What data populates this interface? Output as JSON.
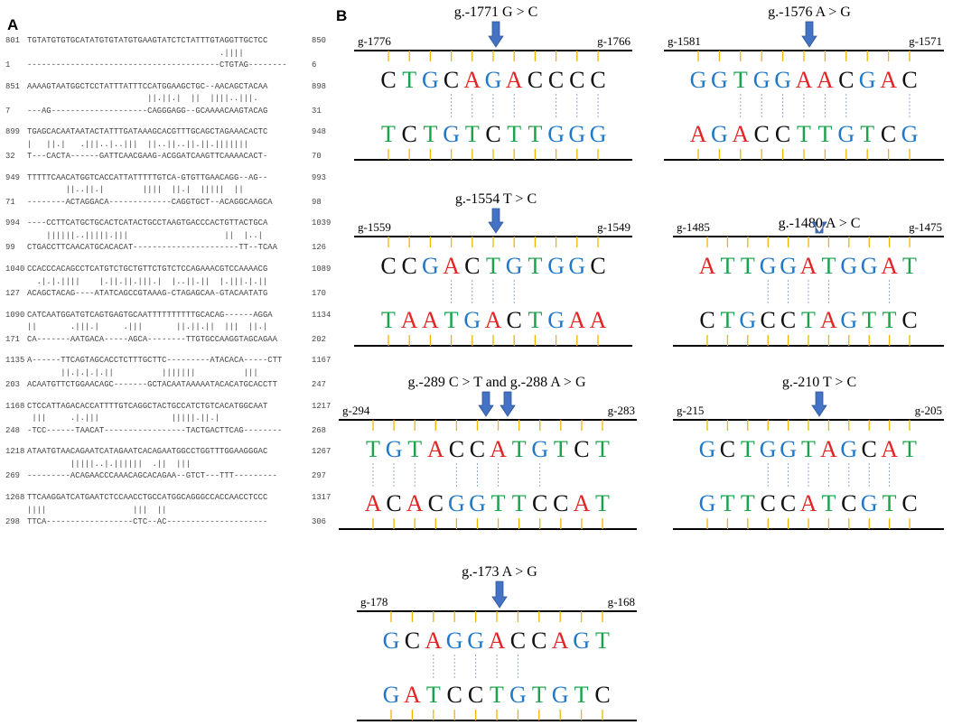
{
  "panel_a": {
    "label": "A",
    "blocks": [
      {
        "top": {
          "start": 801,
          "seq": "TGTATGTGTGCATATGTGTATGTGAAGTATCTCTATTTGTAGGTTGCTCC",
          "end": 850
        },
        "match": "                                        .||||",
        "bottom": {
          "start": 1,
          "seq": "----------------------------------------CTGTAG--------",
          "end": 6
        }
      },
      {
        "top": {
          "start": 851,
          "seq": "AAAAGTAATGGCTCCTATTTATTTCCATGGAAGCTGC--AACAGCTACAA",
          "end": 898
        },
        "match": "                         ||.||.|  ||  ||||..|||.",
        "bottom": {
          "start": 7,
          "seq": "---AG--------------------CAGGGAGG--GCAAAACAAGTACAG",
          "end": 31
        }
      },
      {
        "top": {
          "start": 899,
          "seq": "TGAGCACAATAATACTATTTGATAAAGCACGTTTGCAGCTAGAAACACTC",
          "end": 948
        },
        "match": "|   ||.|   .|||..|..|||  ||..||..||.||.|||||||",
        "bottom": {
          "start": 32,
          "seq": "T---CACTA------GATTCAACGAAG-ACGGATCAAGTTCAAAACACT-",
          "end": 70
        }
      },
      {
        "top": {
          "start": 949,
          "seq": "TTTTTCAACATGGTCACCATTATTTTTGTCA-GTGTTGAACAGG--AG--",
          "end": 993
        },
        "match": "        ||..||.|        ||||  ||.|  |||||  ||",
        "bottom": {
          "start": 71,
          "seq": "--------ACTAGGACA-------------CAGGTGCT--ACAGGCAAGCA",
          "end": 98
        }
      },
      {
        "top": {
          "start": 994,
          "seq": "----CCTTCATGCTGCACTCATACTGCCTAAGTGACCCACTGTTACTGCA",
          "end": 1039
        },
        "match": "    ||||||..|||||.|||                    ||  |..|",
        "bottom": {
          "start": 99,
          "seq": "CTGACCTTCAACATGCACACAT----------------------TT--TCAA",
          "end": 126
        }
      },
      {
        "top": {
          "start": 1040,
          "seq": "CCACCCACAGCCTCATGTCTGCTGTTCTGTCTCCAGAAACGTCCAAAACG",
          "end": 1089
        },
        "match": "  .|.|.||||    |.||.||.|||.|  |..||.||  |.|||.|.||",
        "bottom": {
          "start": 127,
          "seq": "ACAGCTACAG----ATATCAGCCGTAAAG-CTAGAGCAA-GTACAATATG",
          "end": 170
        }
      },
      {
        "top": {
          "start": 1090,
          "seq": "CATCAATGGATGTCAGTGAGTGCAATTTTTTTTTTGCACAG------AGGA",
          "end": 1134
        },
        "match": "||       .|||.|     .|||       ||.||.||  |||  ||.|",
        "bottom": {
          "start": 171,
          "seq": "CA-------AATGACA-----AGCA--------TTGTGCCAAGGTAGCAGAA",
          "end": 202
        }
      },
      {
        "top": {
          "start": 1135,
          "seq": "A------TTCAGTAGCACCTCTTTGCTTC---------ATACACA-----CTT",
          "end": 1167
        },
        "match": "       ||.|.|.|.||          |||||||          |||",
        "bottom": {
          "start": 203,
          "seq": "ACAATGTTCTGGAACAGC-------GCTACAATAAAAATACACATGCACCTT",
          "end": 247
        }
      },
      {
        "top": {
          "start": 1168,
          "seq": "CTCCATTAGACACCATTTTGTCAGGCTACTGCCATCTGTCACATGGCAAT",
          "end": 1217
        },
        "match": " |||     .|.|||               |||||.||.|",
        "bottom": {
          "start": 248,
          "seq": "-TCC------TAACAT-----------------TACTGACTTCAG--------",
          "end": 268
        }
      },
      {
        "top": {
          "start": 1218,
          "seq": "ATAATGTAACAGAATCATAGAATCACAGAATGGCCTGGTTTGGAAGGGAC",
          "end": 1267
        },
        "match": "         |||||..|.||||||  .||  |||",
        "bottom": {
          "start": 269,
          "seq": "---------ACAGAACCCAAACAGCACAGAA--GTCT---TTT---------",
          "end": 297
        }
      },
      {
        "top": {
          "start": 1268,
          "seq": "TTCAAGGATCATGAATCTCCAACCTGCCATGGCAGGGCCACCAACCTCCC",
          "end": 1317
        },
        "match": "||||                  |||  ||",
        "bottom": {
          "start": 298,
          "seq": "TTCA------------------CTC--AC---------------------",
          "end": 306
        }
      }
    ]
  },
  "panel_b": {
    "label": "B",
    "boxes": [
      {
        "title": "g.-1771 G > C",
        "left": "g-1776",
        "right": "g-1766",
        "top": "CTGCAGACCCC",
        "bottom": "TCTGTCTTGGG"
      },
      {
        "title": "g.-1576 A > G",
        "left": "g-1581",
        "right": "g-1571",
        "top": "GGTGGAACGAC",
        "bottom": "AGACCTTGTCG"
      },
      {
        "title": "g.-1554 T > C",
        "left": "g-1559",
        "right": "g-1549",
        "top": "CCGACTGTGGC",
        "bottom": "TAATGACTGAA"
      },
      {
        "title": "g.-1480 A > C",
        "left": "g-1485",
        "right": "g-1475",
        "top": "ATTGGATGGAT",
        "bottom": "CTGCCTAGTTC"
      },
      {
        "title": "g.-289 C > T and g.-288 A > G",
        "left": "g-294",
        "right": "g-283",
        "top": "TGTACCATGTCT",
        "bottom": "ACACGGTTCCAT"
      },
      {
        "title": "g.-210 T > C",
        "left": "g-215",
        "right": "g-205",
        "top": "GCTGGTAGCAT",
        "bottom": "GTTCCATCGTC"
      },
      {
        "title": "g.-173 A > G",
        "left": "g-178",
        "right": "g-168",
        "top": "GCAGGACCAGT",
        "bottom": "GATCCTGTGTC"
      }
    ]
  }
}
